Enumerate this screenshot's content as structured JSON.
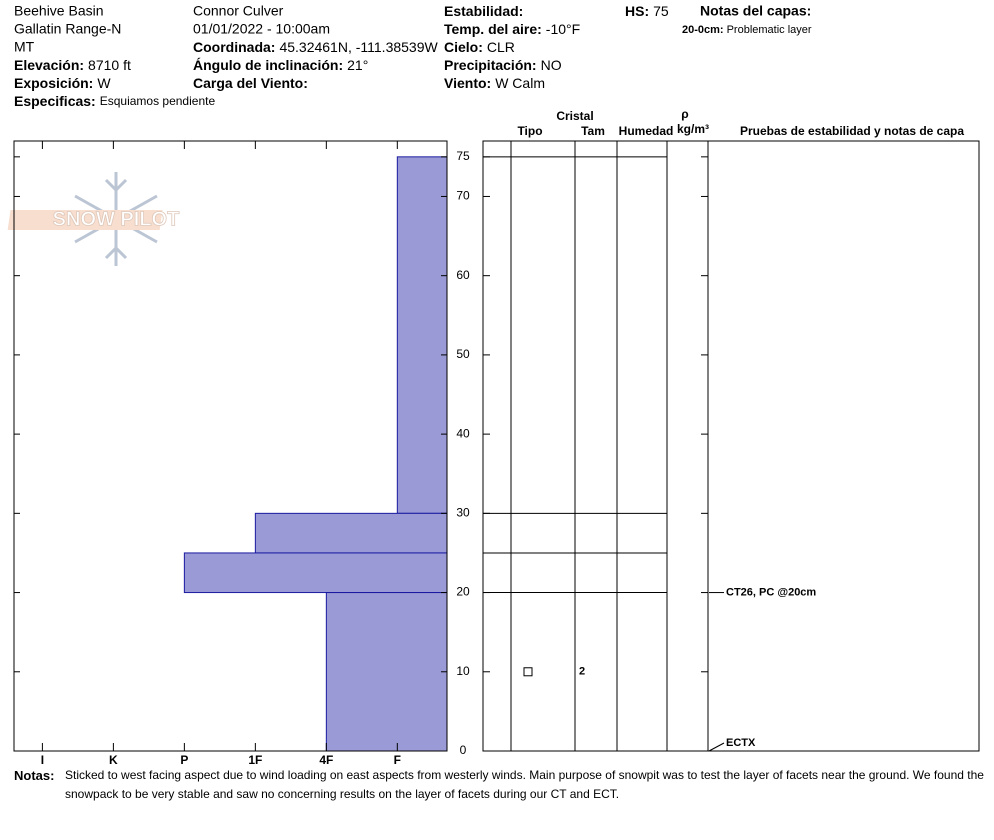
{
  "header": {
    "site": "Beehive Basin",
    "range": "Gallatin Range-N",
    "state": "MT",
    "observer": "Connor Culver",
    "datetime": "01/01/2022 - 10:00am",
    "fields": [
      {
        "label": "Elevación:",
        "value": "8710 ft"
      },
      {
        "label": "Exposición:",
        "value": "W"
      },
      {
        "label": "Especificas:",
        "value": "Esquiamos pendiente"
      },
      {
        "label": "Coordinada:",
        "value": "45.32461N, -111.38539W"
      },
      {
        "label": "Ángulo de inclinación:",
        "value": "21°"
      },
      {
        "label": "Carga del Viento:"
      },
      {
        "label": "Estabilidad:"
      },
      {
        "label": "Temp. del aire:",
        "value": "-10°F"
      },
      {
        "label": "Cielo:",
        "value": "CLR"
      },
      {
        "label": "Precipitación:",
        "value": "NO"
      },
      {
        "label": "Viento:",
        "value": "W Calm"
      },
      {
        "label": "HS:",
        "value": "75"
      }
    ],
    "layer_notes_title": "Notas del capas:",
    "layer_notes": [
      {
        "label": "20-0cm:",
        "text": "Problematic layer"
      }
    ]
  },
  "logo": "SNOW PILOT",
  "chart_data": {
    "type": "hardness-profile",
    "color": "#9a9ad6",
    "edge_color": "#1a1aa0",
    "xlim": [
      0.3,
      6.4
    ],
    "xticks": [
      {
        "value": 6,
        "label": "I"
      },
      {
        "value": 5,
        "label": "K"
      },
      {
        "value": 4,
        "label": "P"
      },
      {
        "value": 3,
        "label": "1F"
      },
      {
        "value": 2,
        "label": "4F"
      },
      {
        "value": 1,
        "label": "F"
      }
    ],
    "ylim": [
      0,
      77
    ],
    "yticks": [
      0,
      10,
      20,
      30,
      40,
      50,
      60,
      70,
      75
    ],
    "layers": [
      {
        "top": 75,
        "bottom": 30,
        "hardness": 1
      },
      {
        "top": 30,
        "bottom": 25,
        "hardness": 3
      },
      {
        "top": 25,
        "bottom": 20,
        "hardness": 4
      },
      {
        "top": 20,
        "bottom": 0,
        "hardness": 2
      }
    ],
    "columns": {
      "group": "Cristal",
      "type": "Tipo",
      "size": "Tam",
      "moisture": "Humedad",
      "density_symbol": "ρ",
      "density_unit": "kg/m³",
      "tests": "Pruebas de estabilidad y notas de capa"
    },
    "crystals": [
      {
        "depth": 10,
        "size": "2"
      }
    ],
    "tests": [
      {
        "depth": 20,
        "label": "CT26, PC @20cm"
      },
      {
        "depth": 0,
        "label": "ECTX"
      }
    ]
  },
  "notes": {
    "label": "Notas:",
    "text": "Sticked to west facing aspect due to wind loading on east aspects from westerly winds. Main purpose of snowpit was to test the layer of facets near the ground. We found the snowpack to be very stable and saw no concerning results on the layer of facets during our CT and ECT."
  }
}
